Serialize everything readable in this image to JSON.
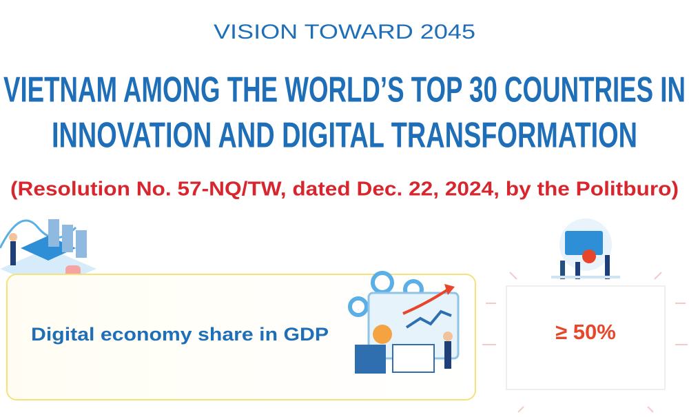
{
  "header": {
    "kicker": "VISION TOWARD 2045",
    "title_lines": [
      "VIETNAM AMONG THE WORLD’S TOP 30 COUNTRIES IN",
      "INNOVATION AND DIGITAL TRANSFORMATION"
    ],
    "subtitle": "(Resolution No. 57-NQ/TW, dated Dec. 22, 2024, by the Politburo)"
  },
  "target": {
    "label": "Digital economy share in GDP",
    "value": "≥ 50%"
  }
}
